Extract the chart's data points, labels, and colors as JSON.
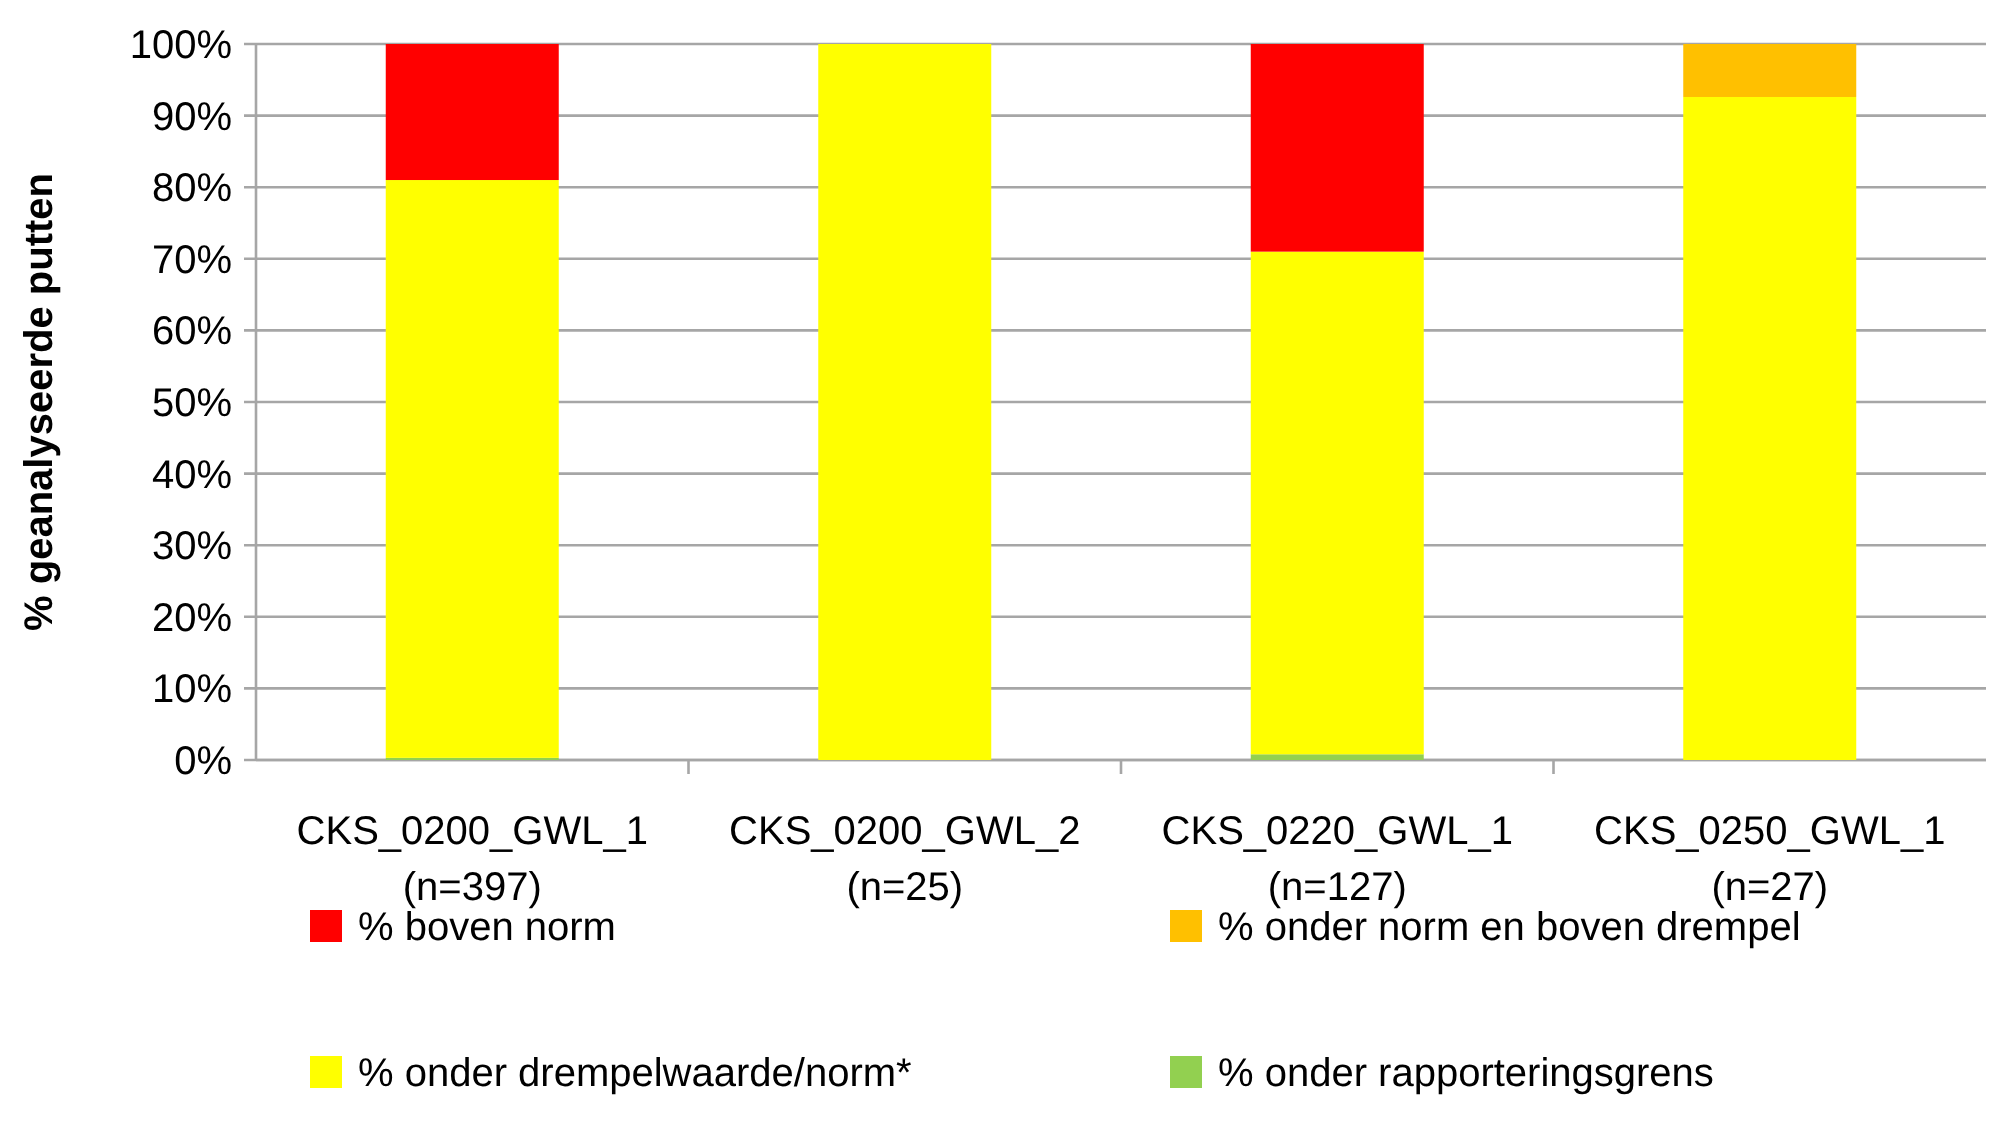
{
  "chart_data": {
    "type": "bar",
    "stacked": true,
    "ylabel": "% geanalyseerde putten",
    "categories": [
      "CKS_0200_GWL_1\n(n=397)",
      "CKS_0200_GWL_2\n(n=25)",
      "CKS_0220_GWL_1\n(n=127)",
      "CKS_0250_GWL_1\n(n=27)"
    ],
    "series": [
      {
        "name": "% onder rapporteringsgrens",
        "color": "#92d050",
        "values": [
          0.3,
          0,
          0.8,
          0
        ]
      },
      {
        "name": "% onder drempelwaarde/norm*",
        "color": "#ffff00",
        "values": [
          80.7,
          100,
          70.2,
          92.6
        ]
      },
      {
        "name": "% onder norm en boven drempel",
        "color": "#ffc000",
        "values": [
          0,
          0,
          0,
          7.4
        ]
      },
      {
        "name": "% boven norm",
        "color": "#ff0000",
        "values": [
          19,
          0,
          29,
          0
        ]
      }
    ],
    "ylim": [
      0,
      100
    ],
    "yticks": [
      {
        "value": 0,
        "label": "0%"
      },
      {
        "value": 10,
        "label": "10%"
      },
      {
        "value": 20,
        "label": "20%"
      },
      {
        "value": 30,
        "label": "30%"
      },
      {
        "value": 40,
        "label": "40%"
      },
      {
        "value": 50,
        "label": "50%"
      },
      {
        "value": 60,
        "label": "60%"
      },
      {
        "value": 70,
        "label": "70%"
      },
      {
        "value": 80,
        "label": "80%"
      },
      {
        "value": 90,
        "label": "90%"
      },
      {
        "value": 100,
        "label": "100%"
      }
    ],
    "grid": "y",
    "legend": "bottom"
  }
}
